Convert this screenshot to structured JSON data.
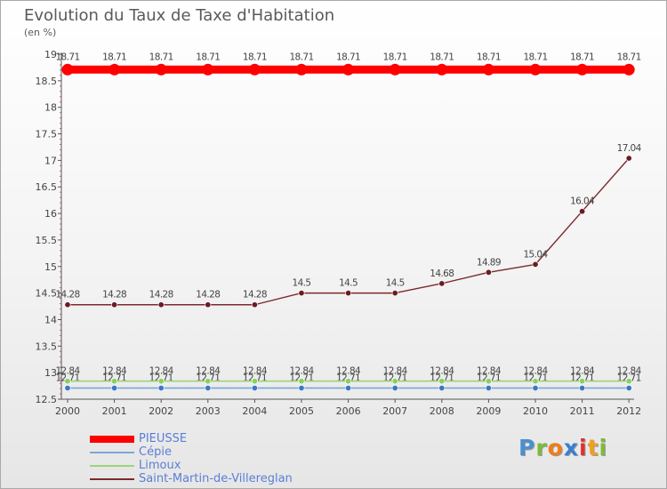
{
  "chart_data": {
    "type": "line",
    "title": "Evolution du Taux de Taxe d'Habitation",
    "ylabel": "(en %)",
    "xlabel": "",
    "x": [
      "2000",
      "2001",
      "2002",
      "2003",
      "2004",
      "2005",
      "2006",
      "2007",
      "2008",
      "2009",
      "2010",
      "2011",
      "2012"
    ],
    "ylim": [
      12.5,
      19
    ],
    "yticks": [
      "12.5",
      "13",
      "13.5",
      "14",
      "14.5",
      "15",
      "15.5",
      "16",
      "16.5",
      "17",
      "17.5",
      "18",
      "18.5",
      "19"
    ],
    "grid": false,
    "legend_position": "bottom-left",
    "series": [
      {
        "name": "PIEUSSE",
        "color": "#ff0000",
        "values": [
          18.71,
          18.71,
          18.71,
          18.71,
          18.71,
          18.71,
          18.71,
          18.71,
          18.71,
          18.71,
          18.71,
          18.71,
          18.71
        ],
        "labels": [
          "18.71",
          "18.71",
          "18.71",
          "18.71",
          "18.71",
          "18.71",
          "18.71",
          "18.71",
          "18.71",
          "18.71",
          "18.71",
          "18.71",
          "18.71"
        ]
      },
      {
        "name": "Cépie",
        "color": "#7ba7d4",
        "values": [
          12.71,
          12.71,
          12.71,
          12.71,
          12.71,
          12.71,
          12.71,
          12.71,
          12.71,
          12.71,
          12.71,
          12.71,
          12.71
        ],
        "labels": [
          "12.71",
          "12.71",
          "12.71",
          "12.71",
          "12.71",
          "12.71",
          "12.71",
          "12.71",
          "12.71",
          "12.71",
          "12.71",
          "12.71",
          "12.71"
        ]
      },
      {
        "name": "Limoux",
        "color": "#9ad67a",
        "values": [
          12.84,
          12.84,
          12.84,
          12.84,
          12.84,
          12.84,
          12.84,
          12.84,
          12.84,
          12.84,
          12.84,
          12.84,
          12.84
        ],
        "labels": [
          "12.84",
          "12.84",
          "12.84",
          "12.84",
          "12.84",
          "12.84",
          "12.84",
          "12.84",
          "12.84",
          "12.84",
          "12.84",
          "12.84",
          "12.84"
        ]
      },
      {
        "name": "Saint-Martin-de-Villereglan",
        "color": "#7a2a2e",
        "values": [
          14.28,
          14.28,
          14.28,
          14.28,
          14.28,
          14.5,
          14.5,
          14.5,
          14.68,
          14.89,
          15.04,
          16.04,
          17.04
        ],
        "labels": [
          "14.28",
          "14.28",
          "14.28",
          "14.28",
          "14.28",
          "14.5",
          "14.5",
          "14.5",
          "14.68",
          "14.89",
          "15.04",
          "16.04",
          "17.04"
        ]
      }
    ]
  },
  "logo": {
    "letters": [
      {
        "ch": "P",
        "color": "#4a90d0"
      },
      {
        "ch": "r",
        "color": "#7dbb3a"
      },
      {
        "ch": "o",
        "color": "#f07d1a"
      },
      {
        "ch": "x",
        "color": "#3a7fd0"
      },
      {
        "ch": "i",
        "color": "#e03030"
      },
      {
        "ch": "t",
        "color": "#f0a020"
      },
      {
        "ch": "i",
        "color": "#7dbb3a"
      }
    ]
  }
}
